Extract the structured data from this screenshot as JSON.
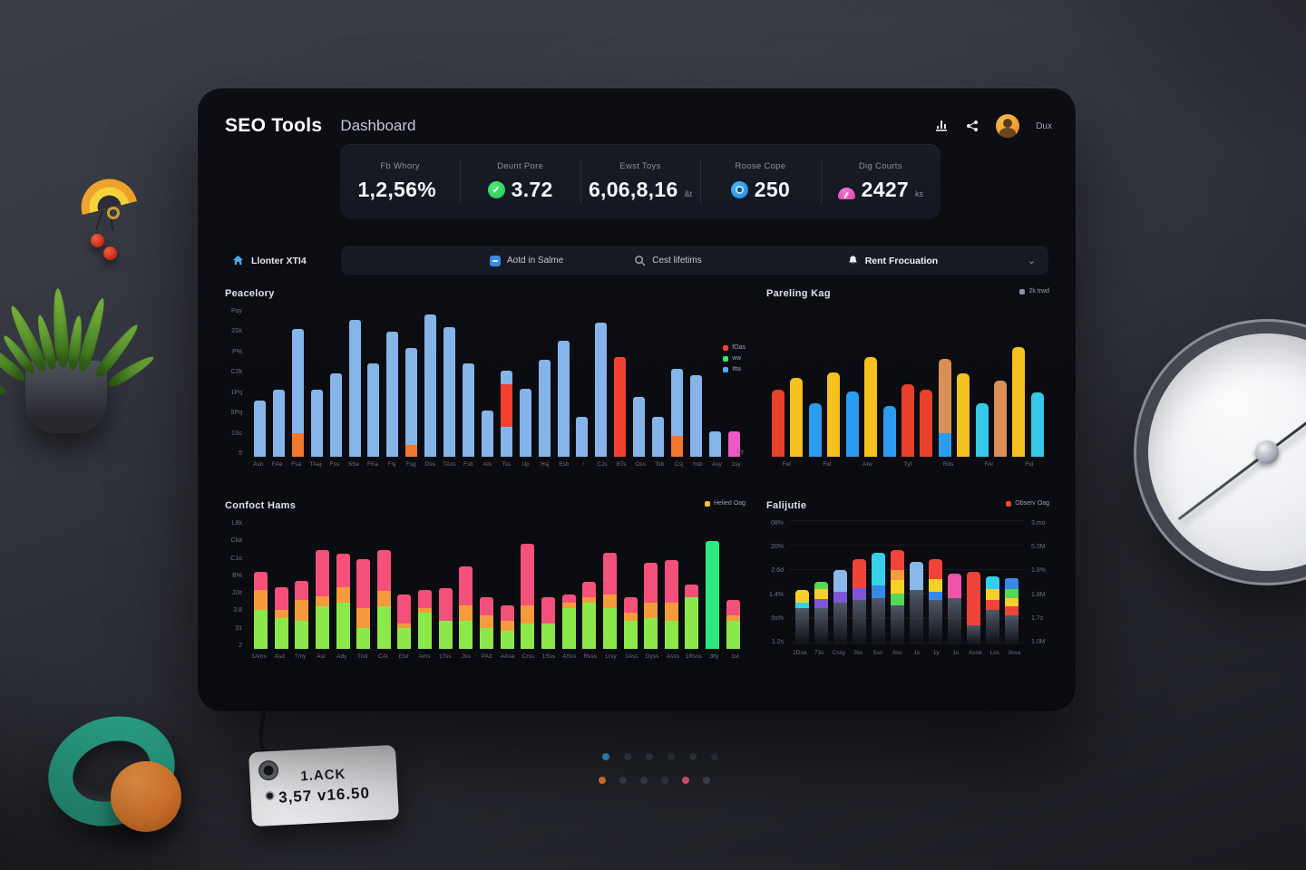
{
  "header": {
    "brand": "SEO Tools",
    "title": "Dashboard",
    "user_label": "Dux"
  },
  "stats": {
    "items": [
      {
        "label": "Fb Whory",
        "value": "1,2,56%",
        "suffix": ""
      },
      {
        "label": "Deunt Pore",
        "value": "3.72",
        "suffix": ""
      },
      {
        "label": "Ewst Toys",
        "value": "6,06,8,16",
        "suffix": "&t"
      },
      {
        "label": "Roose Cope",
        "value": "250",
        "suffix": ""
      },
      {
        "label": "Dig Courts",
        "value": "2427",
        "suffix": "ks"
      }
    ]
  },
  "filterbar": {
    "items": [
      {
        "label": "Llonter XTI4"
      },
      {
        "label": "Aotd in Salme"
      },
      {
        "label": "Cest lifetims"
      },
      {
        "label": "Rent Frocuation"
      }
    ],
    "chevron": "⌄"
  },
  "accent_colors": {
    "blue": "#85b5e8",
    "orange": "#f2762e",
    "red": "#f4402e",
    "pink": "#ee58c8",
    "yellow": "#f5c11e",
    "cyan": "#35c8e8",
    "green": "#8ce84a",
    "spring_green": "#2ce87e"
  },
  "charts": {
    "tl": {
      "title": "Peacelory",
      "type": "bar",
      "note": "1/y",
      "legend": [
        {
          "color": "#f4402e",
          "label": "fOas"
        },
        {
          "color": "#3ee86a",
          "label": "ww"
        },
        {
          "color": "#5aa8f0",
          "label": "Itta"
        }
      ],
      "palette": {
        "blue": "#85b5e8",
        "orange": "#f2762e",
        "red": "#f4402e",
        "pink": "#ee58c8"
      },
      "y_ticks": [
        "Pay",
        "2Sk",
        "P%",
        "C2k",
        "1Pq",
        "5Pq",
        "1Sc",
        "5"
      ],
      "x_labels": [
        "Ash",
        "FAe",
        "Fsa",
        "TAaj",
        "Fss",
        "SSe",
        "FKa",
        "Fsj",
        "Fsg",
        "Dss",
        "TAss",
        "Fsb",
        "AIs",
        "Tss",
        "Up",
        "Hsj",
        "Esb",
        "/",
        "CJs",
        "BTs",
        "Oss",
        "Tsb",
        "Csj",
        "hsb",
        "Asy",
        "1sy"
      ],
      "bars": [
        [
          [
            "blue",
            38
          ]
        ],
        [
          [
            "blue",
            45
          ]
        ],
        [
          [
            "orange",
            16
          ],
          [
            "blue",
            70
          ]
        ],
        [
          [
            "blue",
            45
          ]
        ],
        [
          [
            "blue",
            56
          ]
        ],
        [
          [
            "blue",
            92
          ]
        ],
        [
          [
            "blue",
            63
          ]
        ],
        [
          [
            "blue",
            84
          ]
        ],
        [
          [
            "orange",
            8
          ],
          [
            "blue",
            65
          ]
        ],
        [
          [
            "blue",
            96
          ]
        ],
        [
          [
            "blue",
            87
          ]
        ],
        [
          [
            "blue",
            63
          ]
        ],
        [
          [
            "blue",
            31
          ]
        ],
        [
          [
            "blue",
            20
          ],
          [
            "red",
            29
          ],
          [
            "blue",
            9
          ]
        ],
        [
          [
            "blue",
            46
          ]
        ],
        [
          [
            "blue",
            65
          ]
        ],
        [
          [
            "blue",
            78
          ]
        ],
        [
          [
            "blue",
            27
          ]
        ],
        [
          [
            "blue",
            90
          ]
        ],
        [
          [
            "red",
            67
          ]
        ],
        [
          [
            "blue",
            40
          ]
        ],
        [
          [
            "blue",
            27
          ]
        ],
        [
          [
            "orange",
            14
          ],
          [
            "blue",
            45
          ]
        ],
        [
          [
            "blue",
            55
          ]
        ],
        [
          [
            "blue",
            17
          ]
        ],
        [
          [
            "pink",
            17
          ]
        ]
      ]
    },
    "tr": {
      "title": "Pareling Kag",
      "type": "bar",
      "legend": [
        {
          "color": "#8a90a0",
          "label": "2k trwd"
        }
      ],
      "palette": {
        "red": "#e8402a",
        "yellow": "#f5c11e",
        "blue": "#2b9cf0",
        "cyan": "#35c8e8",
        "tan": "#d89058"
      },
      "y_ticks": [],
      "x_labels": [
        "Fet",
        "Fid",
        "AIw",
        "Tyf",
        "Rds",
        "FAl",
        "Fid"
      ],
      "bars": [
        [
          [
            "red",
            45
          ]
        ],
        [
          [
            "yellow",
            53
          ]
        ],
        [
          [
            "blue",
            36
          ]
        ],
        [
          [
            "yellow",
            57
          ]
        ],
        [
          [
            "blue",
            44
          ]
        ],
        [
          [
            "yellow",
            67
          ]
        ],
        [
          [
            "blue",
            34
          ]
        ],
        [
          [
            "red",
            49
          ]
        ],
        [
          [
            "red",
            45
          ]
        ],
        [
          [
            "blue",
            16
          ],
          [
            "tan",
            50
          ]
        ],
        [
          [
            "yellow",
            56
          ]
        ],
        [
          [
            "cyan",
            36
          ]
        ],
        [
          [
            "tan",
            51
          ]
        ],
        [
          [
            "yellow",
            74
          ]
        ],
        [
          [
            "cyan",
            43
          ]
        ]
      ]
    },
    "bl": {
      "title": "Confoct Hams",
      "type": "stacked-bar",
      "legend": [
        {
          "color": "#f5c11e",
          "label": "Helied Oag"
        }
      ],
      "palette": {
        "green": "#8ce84a",
        "orange": "#f59b3c",
        "pink": "#f4517a",
        "sgreen": "#2ce87e"
      },
      "y_ticks": [
        "L8k",
        "Cka",
        "C1o",
        "B%",
        "J2e",
        "3.8",
        "31",
        "2"
      ],
      "x_labels": [
        "1Ams",
        "Asd",
        "Tmy",
        "Ast",
        "Ady",
        "Tnd",
        "CAt",
        "Elst",
        "Ams",
        "1Tss",
        "Jss",
        "PAd",
        "AAsa",
        "Crss",
        "1Sss",
        "ASss",
        "Rsss",
        "Lrsy",
        "1Ass",
        "Dyss",
        "Asss",
        "1Rsss",
        "3tly",
        "1st"
      ],
      "bars": [
        [
          [
            "green",
            30
          ],
          [
            "orange",
            16
          ],
          [
            "pink",
            14
          ]
        ],
        [
          [
            "green",
            24
          ],
          [
            "orange",
            6
          ],
          [
            "pink",
            18
          ]
        ],
        [
          [
            "green",
            22
          ],
          [
            "orange",
            16
          ],
          [
            "pink",
            15
          ]
        ],
        [
          [
            "green",
            33
          ],
          [
            "orange",
            8
          ],
          [
            "pink",
            36
          ]
        ],
        [
          [
            "green",
            36
          ],
          [
            "orange",
            12
          ],
          [
            "pink",
            26
          ]
        ],
        [
          [
            "green",
            16
          ],
          [
            "orange",
            16
          ],
          [
            "pink",
            38
          ]
        ],
        [
          [
            "green",
            33
          ],
          [
            "orange",
            12
          ],
          [
            "pink",
            32
          ]
        ],
        [
          [
            "green",
            16
          ],
          [
            "orange",
            4
          ],
          [
            "pink",
            22
          ]
        ],
        [
          [
            "green",
            28
          ],
          [
            "orange",
            4
          ],
          [
            "pink",
            14
          ]
        ],
        [
          [
            "green",
            22
          ],
          [
            "pink",
            25
          ]
        ],
        [
          [
            "green",
            22
          ],
          [
            "orange",
            12
          ],
          [
            "pink",
            30
          ]
        ],
        [
          [
            "green",
            16
          ],
          [
            "orange",
            10
          ],
          [
            "pink",
            14
          ]
        ],
        [
          [
            "green",
            14
          ],
          [
            "orange",
            8
          ],
          [
            "pink",
            12
          ]
        ],
        [
          [
            "green",
            20
          ],
          [
            "orange",
            14
          ],
          [
            "pink",
            48
          ]
        ],
        [
          [
            "green",
            20
          ],
          [
            "pink",
            20
          ]
        ],
        [
          [
            "green",
            32
          ],
          [
            "orange",
            4
          ],
          [
            "pink",
            6
          ]
        ],
        [
          [
            "green",
            36
          ],
          [
            "orange",
            4
          ],
          [
            "pink",
            12
          ]
        ],
        [
          [
            "green",
            32
          ],
          [
            "orange",
            10
          ],
          [
            "pink",
            33
          ]
        ],
        [
          [
            "green",
            22
          ],
          [
            "orange",
            6
          ],
          [
            "pink",
            12
          ]
        ],
        [
          [
            "green",
            24
          ],
          [
            "orange",
            12
          ],
          [
            "pink",
            31
          ]
        ],
        [
          [
            "green",
            22
          ],
          [
            "orange",
            14
          ],
          [
            "pink",
            33
          ]
        ],
        [
          [
            "green",
            40
          ],
          [
            "pink",
            10
          ]
        ],
        [
          [
            "sgreen",
            84
          ]
        ],
        [
          [
            "green",
            22
          ],
          [
            "orange",
            4
          ],
          [
            "pink",
            12
          ]
        ]
      ]
    },
    "br": {
      "title": "Falijutie",
      "type": "stacked-bar",
      "legend": [
        {
          "color": "#f04438",
          "label": "Observ Oag"
        }
      ],
      "palette": {
        "gf": "linear-gradient(180deg,#505866 0%,rgba(38,42,50,0.05) 100%)",
        "red": "#f04438",
        "orange": "#f59b3c",
        "yellow": "#f5d028",
        "green": "#55d855",
        "cyan": "#35d0e8",
        "blue": "#3888e8",
        "lblue": "#8ab8e8",
        "purple": "#7e57d8",
        "pink": "#f053a8"
      },
      "y_ticks": [
        "08%",
        "20%",
        "2.6d",
        "1.4%",
        "5s%",
        "1.2s"
      ],
      "y_ticks_right": [
        "3.mo",
        "5.0M",
        "1.8%",
        "1.8M",
        "1.7s",
        "1.0M"
      ],
      "x_labels": [
        "1Dsa",
        "73s",
        "Cssy",
        "3ss",
        "Sss",
        "Ass",
        "1s",
        "1y",
        "1s",
        "Assd",
        "Lss",
        "3ssa"
      ],
      "bars": [
        [
          [
            "gf",
            30
          ],
          [
            "cyan",
            4
          ],
          [
            "yellow",
            10
          ]
        ],
        [
          [
            "gf",
            30
          ],
          [
            "purple",
            7
          ],
          [
            "yellow",
            8
          ],
          [
            "green",
            6
          ]
        ],
        [
          [
            "gf",
            34
          ],
          [
            "purple",
            9
          ],
          [
            "lblue",
            17
          ]
        ],
        [
          [
            "gf",
            36
          ],
          [
            "purple",
            10
          ],
          [
            "red",
            23
          ]
        ],
        [
          [
            "gf",
            38
          ],
          [
            "blue",
            10
          ],
          [
            "cyan",
            26
          ]
        ],
        [
          [
            "gf",
            32
          ],
          [
            "green",
            9
          ],
          [
            "yellow",
            11
          ],
          [
            "orange",
            8
          ],
          [
            "red",
            16
          ]
        ],
        [
          [
            "gf",
            44
          ],
          [
            "lblue",
            23
          ]
        ],
        [
          [
            "gf",
            36
          ],
          [
            "blue",
            7
          ],
          [
            "yellow",
            10
          ],
          [
            "red",
            16
          ]
        ],
        [
          [
            "gf",
            38
          ],
          [
            "pink",
            19
          ]
        ],
        [
          [
            "gf",
            16
          ],
          [
            "red",
            43
          ]
        ],
        [
          [
            "gf",
            28
          ],
          [
            "red",
            8
          ],
          [
            "yellow",
            9
          ],
          [
            "cyan",
            10
          ]
        ],
        [
          [
            "gf",
            24
          ],
          [
            "red",
            7
          ],
          [
            "yellow",
            7
          ],
          [
            "green",
            7
          ],
          [
            "blue",
            9
          ]
        ]
      ]
    }
  },
  "pagination": {
    "row1": [
      "#4aa2ee",
      "#3c424e",
      "#3c424e",
      "#353b46",
      "#3c424e",
      "#353b46"
    ],
    "row2": [
      "#ed7a35",
      "#3c424e",
      "#3c424e",
      "#353b46",
      "#e8587e",
      "#454b58"
    ]
  },
  "scene": {
    "tag": {
      "line1": "1.ACK",
      "line2": "3,57 v16.50"
    }
  }
}
